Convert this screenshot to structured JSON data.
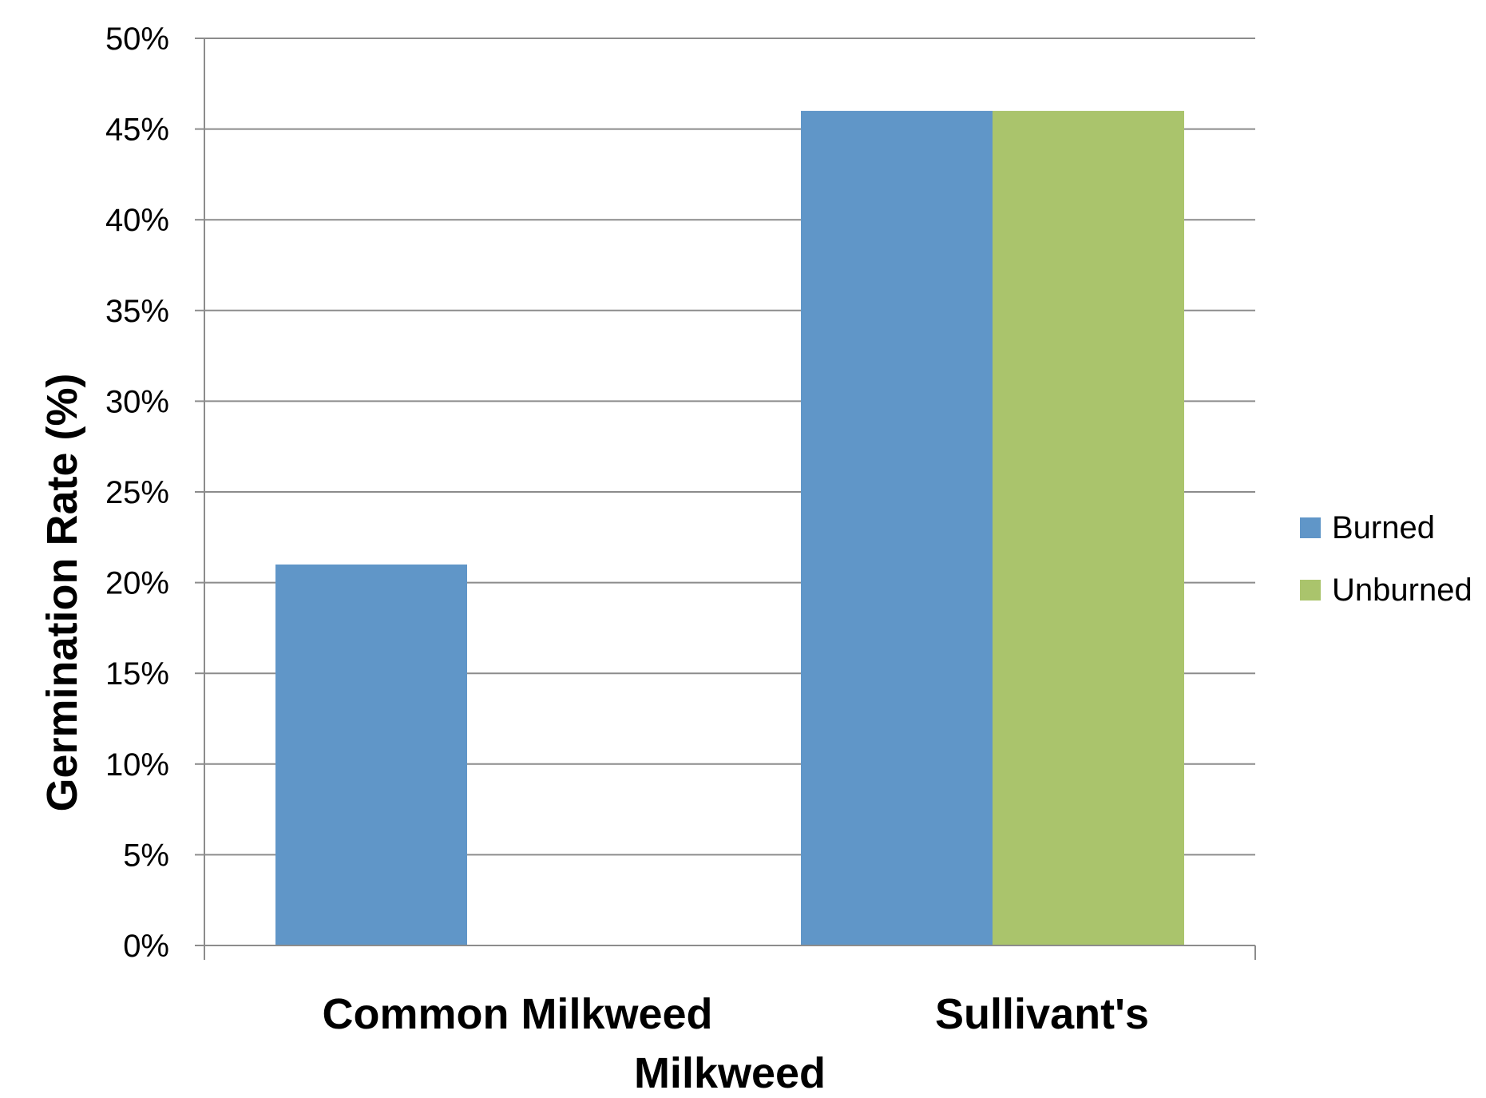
{
  "chart_data": {
    "type": "bar",
    "categories": [
      "Common Milkweed",
      "Sullivant's Milkweed"
    ],
    "category_label_lines": [
      [
        "Common Milkweed"
      ],
      [
        "Sullivant's",
        "Milkweed"
      ]
    ],
    "series": [
      {
        "name": "Burned",
        "color": "#6096C8",
        "values": [
          21,
          46
        ]
      },
      {
        "name": "Unburned",
        "color": "#AAC46C",
        "values": [
          null,
          46
        ]
      }
    ],
    "title": "",
    "xlabel": "",
    "ylabel": "Germination Rate (%)",
    "ylim": [
      0,
      50
    ],
    "yticks": [
      0,
      5,
      10,
      15,
      20,
      25,
      30,
      35,
      40,
      45,
      50
    ],
    "yticks_labels": [
      "0%",
      "5%",
      "10%",
      "15%",
      "20%",
      "25%",
      "30%",
      "35%",
      "40%",
      "45%",
      "50%"
    ],
    "grid": true,
    "legend_position": "right"
  }
}
